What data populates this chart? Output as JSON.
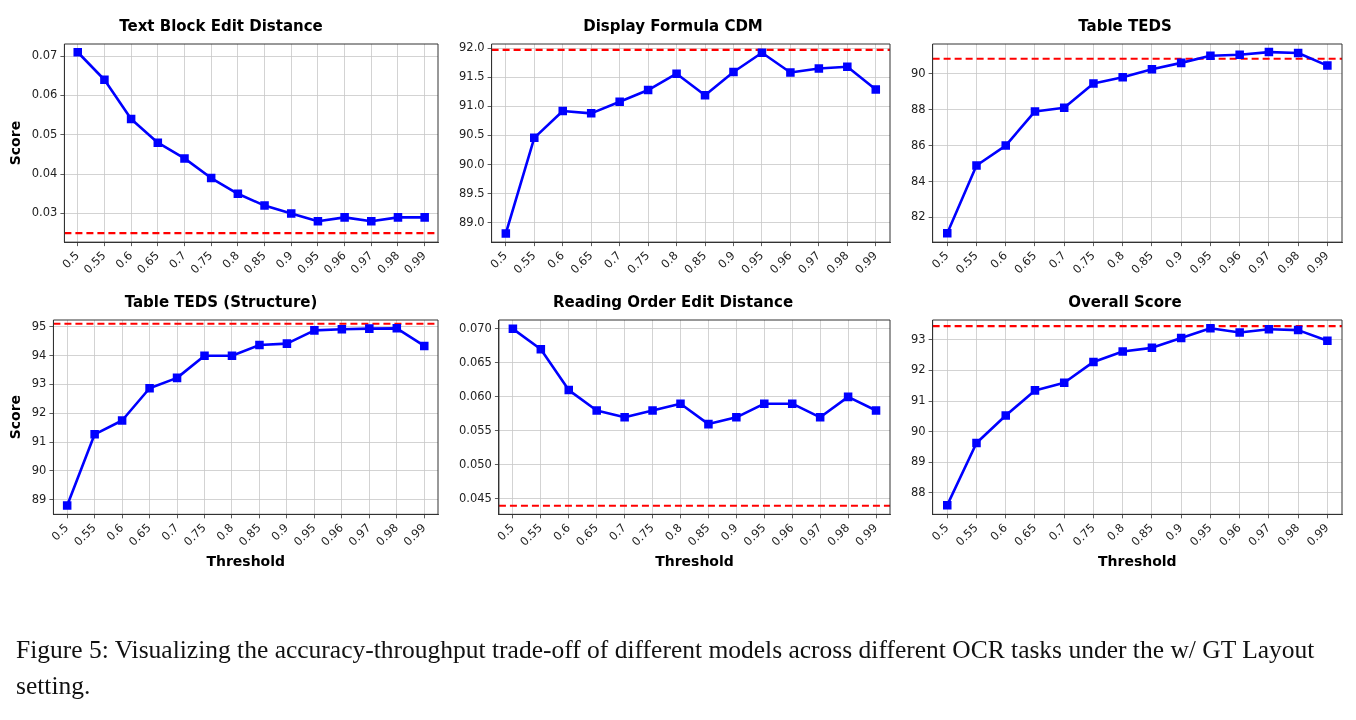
{
  "chart_data": [
    {
      "type": "line",
      "title": "Text Block Edit Distance",
      "ylabel": "Score",
      "categories": [
        "0.5",
        "0.55",
        "0.6",
        "0.65",
        "0.7",
        "0.75",
        "0.8",
        "0.85",
        "0.9",
        "0.95",
        "0.96",
        "0.97",
        "0.98",
        "0.99"
      ],
      "series": [
        {
          "color": "#0000ff",
          "values": [
            0.071,
            0.064,
            0.054,
            0.048,
            0.044,
            0.039,
            0.035,
            0.032,
            0.03,
            0.028,
            0.029,
            0.028,
            0.029,
            0.029
          ]
        }
      ],
      "ylim": [
        0.0227,
        0.0731
      ],
      "yticks": [
        0.03,
        0.04,
        0.05,
        0.06,
        0.07
      ],
      "ref_lines": [
        {
          "axis": "y",
          "value": 0.025,
          "color": "#ff0000",
          "line_style": "dashed"
        }
      ],
      "grid": true,
      "marker": "square",
      "line_style": "solid",
      "annotations": [
        "Figure 5: Visualizing the accuracy-throughput trade-off of different models across different OCR tasks under the w/ GT Layout setting."
      ]
    },
    {
      "type": "line",
      "title": "Display Formula CDM",
      "categories": [
        "0.5",
        "0.55",
        "0.6",
        "0.65",
        "0.7",
        "0.75",
        "0.8",
        "0.85",
        "0.9",
        "0.95",
        "0.96",
        "0.97",
        "0.98",
        "0.99"
      ],
      "series": [
        {
          "color": "#0000ff",
          "values": [
            88.82,
            90.46,
            90.92,
            90.88,
            91.08,
            91.28,
            91.56,
            91.19,
            91.59,
            91.92,
            91.58,
            91.65,
            91.68,
            91.29
          ]
        }
      ],
      "ylim": [
        88.67,
        92.07
      ],
      "yticks": [
        {
          "value": 89,
          "label": "89.0"
        },
        89.5,
        {
          "value": 90,
          "label": "90.0"
        },
        90.5,
        {
          "value": 91,
          "label": "91.0"
        },
        91.5,
        {
          "value": 92,
          "label": "92.0"
        }
      ],
      "ref_lines": [
        {
          "axis": "y",
          "value": 91.97,
          "color": "#ff0000",
          "line_style": "dashed"
        }
      ],
      "grid": true,
      "marker": "square",
      "line_style": "solid"
    },
    {
      "type": "line",
      "title": "Table TEDS",
      "categories": [
        "0.5",
        "0.55",
        "0.6",
        "0.65",
        "0.7",
        "0.75",
        "0.8",
        "0.85",
        "0.9",
        "0.95",
        "0.96",
        "0.97",
        "0.98",
        "0.99"
      ],
      "series": [
        {
          "color": "#0000ff",
          "values": [
            81.13,
            84.89,
            86.0,
            87.9,
            88.1,
            89.45,
            89.8,
            90.25,
            90.6,
            91.0,
            91.05,
            91.2,
            91.15,
            90.45
          ]
        }
      ],
      "ylim": [
        80.63,
        91.65
      ],
      "yticks": [
        82,
        84,
        86,
        88,
        90
      ],
      "ref_lines": [
        {
          "axis": "y",
          "value": 90.83,
          "color": "#ff0000",
          "line_style": "dashed"
        }
      ],
      "grid": true,
      "marker": "square",
      "line_style": "solid"
    },
    {
      "type": "line",
      "title": "Table TEDS (Structure)",
      "xlabel": "Threshold",
      "ylabel": "Score",
      "categories": [
        "0.5",
        "0.55",
        "0.6",
        "0.65",
        "0.7",
        "0.75",
        "0.8",
        "0.85",
        "0.9",
        "0.95",
        "0.96",
        "0.97",
        "0.98",
        "0.99"
      ],
      "series": [
        {
          "color": "#0000ff",
          "values": [
            88.8,
            91.27,
            91.75,
            92.87,
            93.23,
            94.0,
            94.0,
            94.37,
            94.42,
            94.88,
            94.92,
            94.94,
            94.95,
            94.34
          ]
        }
      ],
      "ylim": [
        88.49,
        95.24
      ],
      "yticks": [
        89,
        90,
        91,
        92,
        93,
        94,
        95
      ],
      "ref_lines": [
        {
          "axis": "y",
          "value": 95.11,
          "color": "#ff0000",
          "line_style": "dashed"
        }
      ],
      "grid": true,
      "marker": "square",
      "line_style": "solid"
    },
    {
      "type": "line",
      "title": "Reading Order Edit Distance",
      "xlabel": "Threshold",
      "categories": [
        "0.5",
        "0.55",
        "0.6",
        "0.65",
        "0.7",
        "0.75",
        "0.8",
        "0.85",
        "0.9",
        "0.95",
        "0.96",
        "0.97",
        "0.98",
        "0.99"
      ],
      "series": [
        {
          "color": "#0000ff",
          "values": [
            0.07,
            0.067,
            0.061,
            0.058,
            0.057,
            0.058,
            0.059,
            0.056,
            0.057,
            0.059,
            0.059,
            0.057,
            0.06,
            0.058
          ]
        }
      ],
      "ylim": [
        0.04274,
        0.0713
      ],
      "yticks": [
        0.045,
        {
          "value": 0.05,
          "label": "0.050"
        },
        0.055,
        {
          "value": 0.06,
          "label": "0.060"
        },
        0.065,
        {
          "value": 0.07,
          "label": "0.070"
        }
      ],
      "ref_lines": [
        {
          "axis": "y",
          "value": 0.044,
          "color": "#ff0000",
          "line_style": "dashed"
        }
      ],
      "grid": true,
      "marker": "square",
      "line_style": "solid"
    },
    {
      "type": "line",
      "title": "Overall Score",
      "xlabel": "Threshold",
      "categories": [
        "0.5",
        "0.55",
        "0.6",
        "0.65",
        "0.7",
        "0.75",
        "0.8",
        "0.85",
        "0.9",
        "0.95",
        "0.96",
        "0.97",
        "0.98",
        "0.99"
      ],
      "series": [
        {
          "color": "#0000ff",
          "values": [
            87.6,
            89.63,
            90.53,
            91.35,
            91.6,
            92.28,
            92.62,
            92.74,
            93.06,
            93.38,
            93.24,
            93.35,
            93.32,
            92.97
          ]
        }
      ],
      "ylim": [
        87.3,
        93.65
      ],
      "yticks": [
        88,
        89,
        90,
        91,
        92,
        93
      ],
      "ref_lines": [
        {
          "axis": "y",
          "value": 93.45,
          "color": "#ff0000",
          "line_style": "dashed"
        }
      ],
      "grid": true,
      "marker": "square",
      "line_style": "solid"
    }
  ]
}
